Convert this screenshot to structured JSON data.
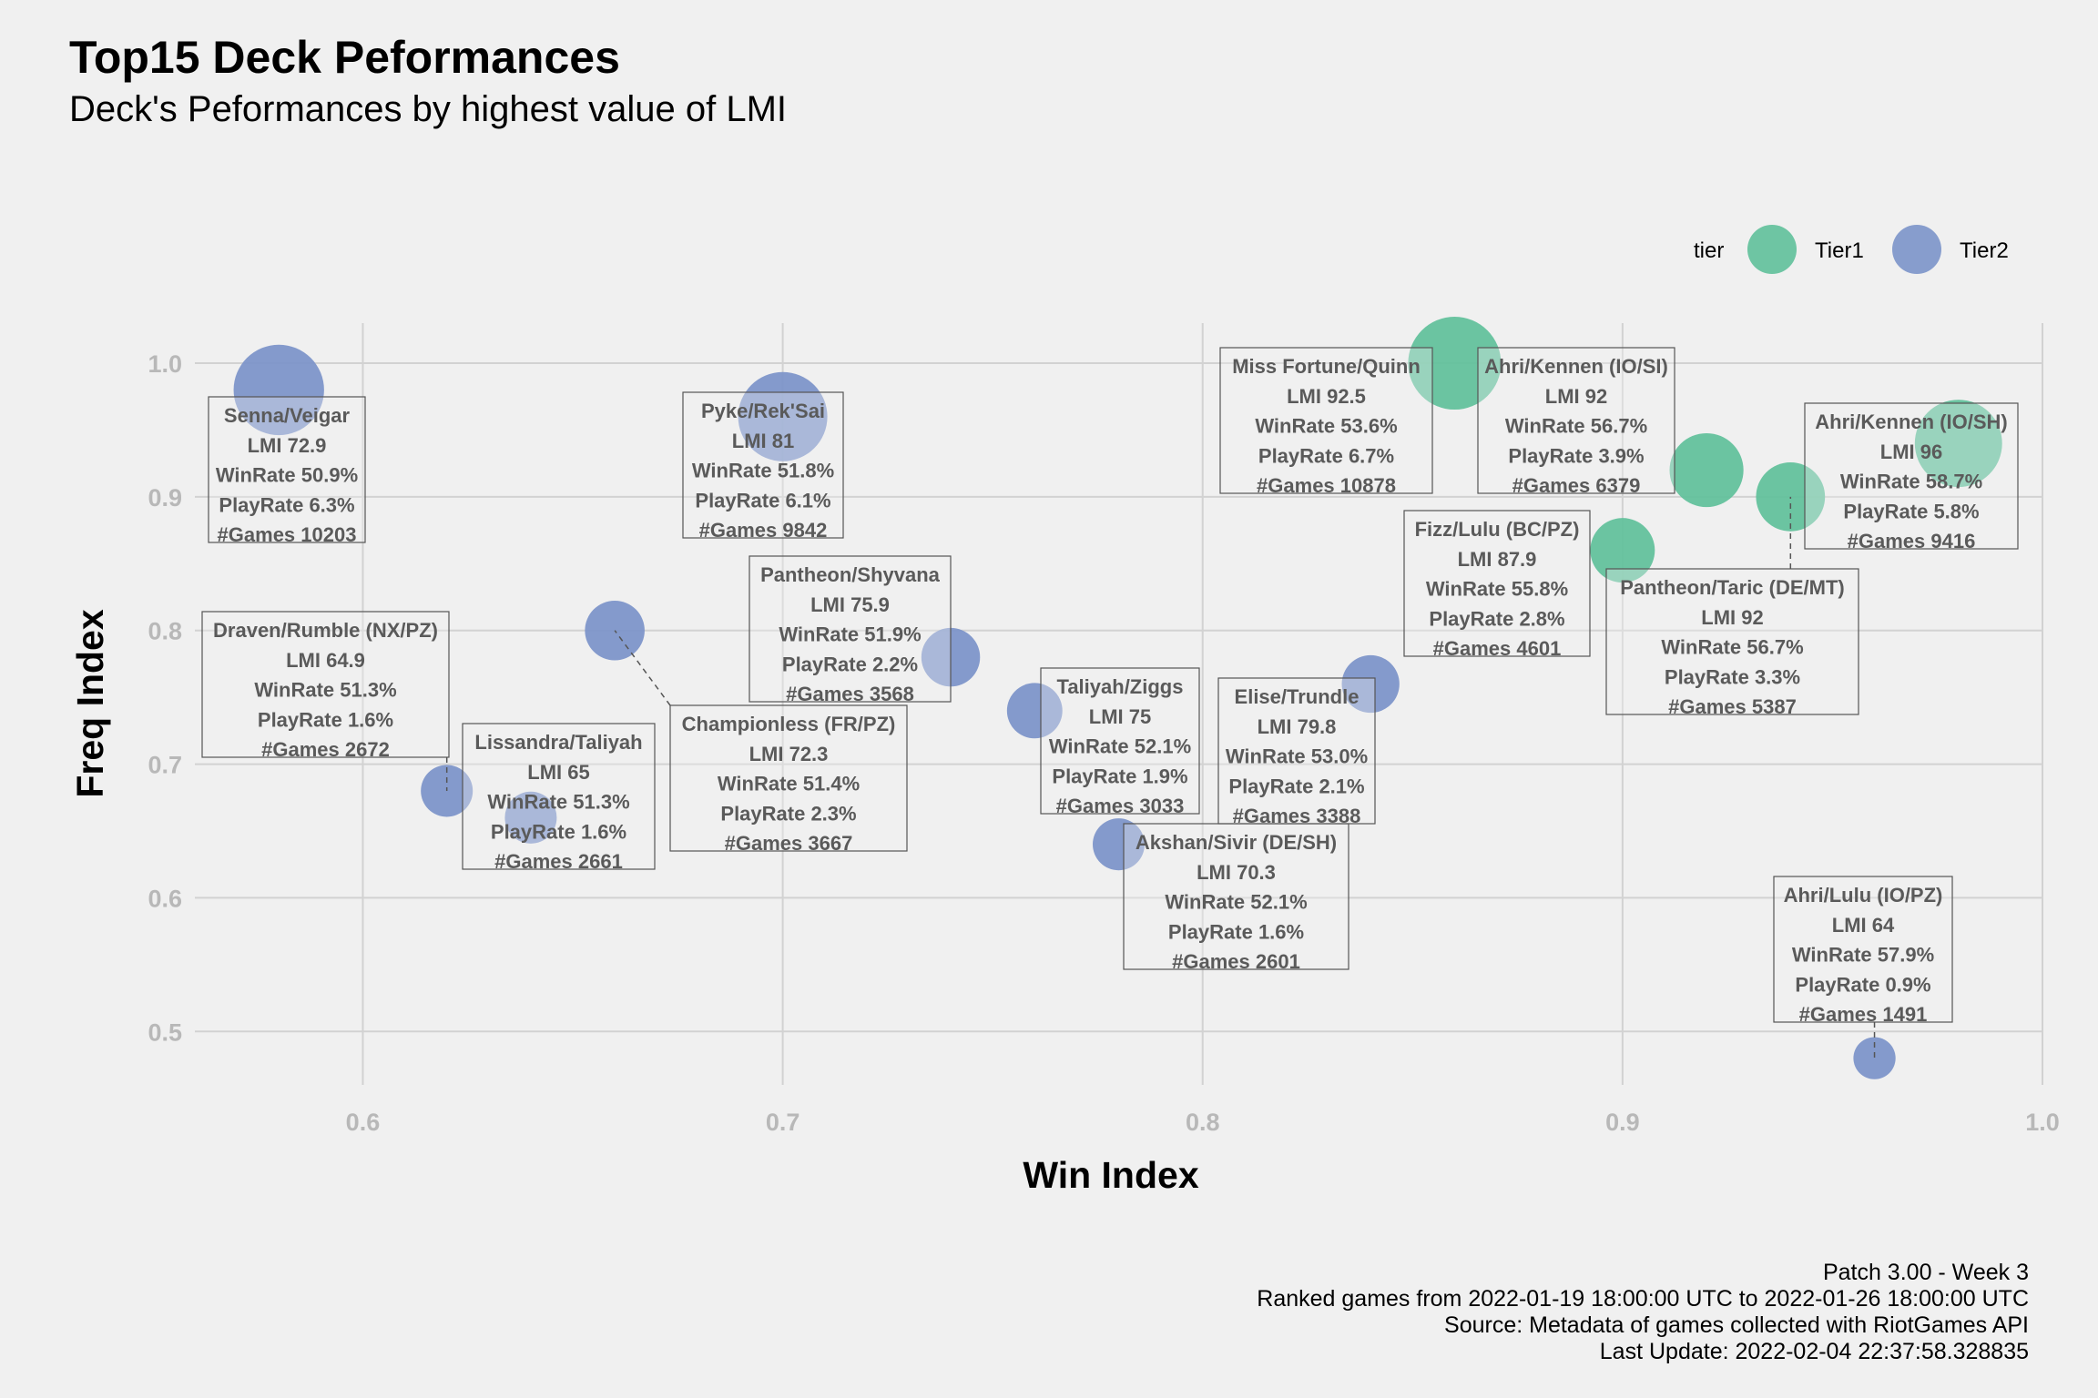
{
  "title": "Top15 Deck Peformances",
  "subtitle": "Deck's Peformances by highest value of LMI",
  "caption": [
    "Patch 3.00 - Week 3",
    "Ranked games from 2022-01-19 18:00:00 UTC to 2022-01-26 18:00:00 UTC",
    "Source: Metadata of games collected with RiotGames API",
    "Last Update: 2022-02-04 22:37:58.328835"
  ],
  "colors": {
    "Tier1": "#5fc09a",
    "Tier2": "#7b93c9",
    "grid": "#d2d2d2",
    "tick": "#b8b8b8",
    "label": "#5a5a5a"
  },
  "chart_data": {
    "type": "scatter",
    "xlabel": "Win Index",
    "ylabel": "Freq Index",
    "xlim": [
      0.56,
      1.0
    ],
    "ylim": [
      0.46,
      1.03
    ],
    "xticks": [
      0.6,
      0.7,
      0.8,
      0.9,
      1.0
    ],
    "xtick_labels": [
      "0.6",
      "0.7",
      "0.8",
      "0.9",
      "1.0"
    ],
    "yticks": [
      0.5,
      0.6,
      0.7,
      0.8,
      0.9,
      1.0
    ],
    "ytick_labels": [
      "0.5",
      "0.6",
      "0.7",
      "0.8",
      "0.9",
      "1.0"
    ],
    "grid": true,
    "legend": {
      "title": "tier",
      "position": "top-right",
      "entries": [
        "Tier1",
        "Tier2"
      ]
    },
    "size_variable": "PlayRate",
    "points": [
      {
        "deck": "Senna/Veigar",
        "lmi": "72.9",
        "winrate": "50.9%",
        "playrate": "6.3%",
        "games": "10203",
        "tier": "Tier2",
        "x": 0.58,
        "y": 0.98,
        "pr": 6.3
      },
      {
        "deck": "Pyke/Rek'Sai",
        "lmi": "81",
        "winrate": "51.8%",
        "playrate": "6.1%",
        "games": "9842",
        "tier": "Tier2",
        "x": 0.7,
        "y": 0.96,
        "pr": 6.1
      },
      {
        "deck": "Pantheon/Shyvana",
        "lmi": "75.9",
        "winrate": "51.9%",
        "playrate": "2.2%",
        "games": "3568",
        "tier": "Tier2",
        "x": 0.74,
        "y": 0.78,
        "pr": 2.2
      },
      {
        "deck": "Draven/Rumble (NX/PZ)",
        "lmi": "64.9",
        "winrate": "51.3%",
        "playrate": "1.6%",
        "games": "2672",
        "tier": "Tier2",
        "x": 0.62,
        "y": 0.68,
        "pr": 1.6
      },
      {
        "deck": "Lissandra/Taliyah",
        "lmi": "65",
        "winrate": "51.3%",
        "playrate": "1.6%",
        "games": "2661",
        "tier": "Tier2",
        "x": 0.64,
        "y": 0.66,
        "pr": 1.6
      },
      {
        "deck": "Championless (FR/PZ)",
        "lmi": "72.3",
        "winrate": "51.4%",
        "playrate": "2.3%",
        "games": "3667",
        "tier": "Tier2",
        "x": 0.66,
        "y": 0.8,
        "pr": 2.3
      },
      {
        "deck": "Taliyah/Ziggs",
        "lmi": "75",
        "winrate": "52.1%",
        "playrate": "1.9%",
        "games": "3033",
        "tier": "Tier2",
        "x": 0.76,
        "y": 0.74,
        "pr": 1.9
      },
      {
        "deck": "Akshan/Sivir (DE/SH)",
        "lmi": "70.3",
        "winrate": "52.1%",
        "playrate": "1.6%",
        "games": "2601",
        "tier": "Tier2",
        "x": 0.78,
        "y": 0.64,
        "pr": 1.6
      },
      {
        "deck": "Elise/Trundle",
        "lmi": "79.8",
        "winrate": "53.0%",
        "playrate": "2.1%",
        "games": "3388",
        "tier": "Tier2",
        "x": 0.84,
        "y": 0.76,
        "pr": 2.1
      },
      {
        "deck": "Miss Fortune/Quinn",
        "lmi": "92.5",
        "winrate": "53.6%",
        "playrate": "6.7%",
        "games": "10878",
        "tier": "Tier1",
        "x": 0.86,
        "y": 1.0,
        "pr": 6.7
      },
      {
        "deck": "Fizz/Lulu (BC/PZ)",
        "lmi": "87.9",
        "winrate": "55.8%",
        "playrate": "2.8%",
        "games": "4601",
        "tier": "Tier1",
        "x": 0.9,
        "y": 0.86,
        "pr": 2.8
      },
      {
        "deck": "Ahri/Kennen (IO/SI)",
        "lmi": "92",
        "winrate": "56.7%",
        "playrate": "3.9%",
        "games": "6379",
        "tier": "Tier1",
        "x": 0.92,
        "y": 0.92,
        "pr": 3.9
      },
      {
        "deck": "Pantheon/Taric (DE/MT)",
        "lmi": "92",
        "winrate": "56.7%",
        "playrate": "3.3%",
        "games": "5387",
        "tier": "Tier1",
        "x": 0.94,
        "y": 0.9,
        "pr": 3.3
      },
      {
        "deck": "Ahri/Kennen (IO/SH)",
        "lmi": "96",
        "winrate": "58.7%",
        "playrate": "5.8%",
        "games": "9416",
        "tier": "Tier1",
        "x": 0.98,
        "y": 0.94,
        "pr": 5.8
      },
      {
        "deck": "Ahri/Lulu (IO/PZ)",
        "lmi": "64",
        "winrate": "57.9%",
        "playrate": "0.9%",
        "games": "1491",
        "tier": "Tier2",
        "x": 0.96,
        "y": 0.48,
        "pr": 0.9
      }
    ]
  }
}
